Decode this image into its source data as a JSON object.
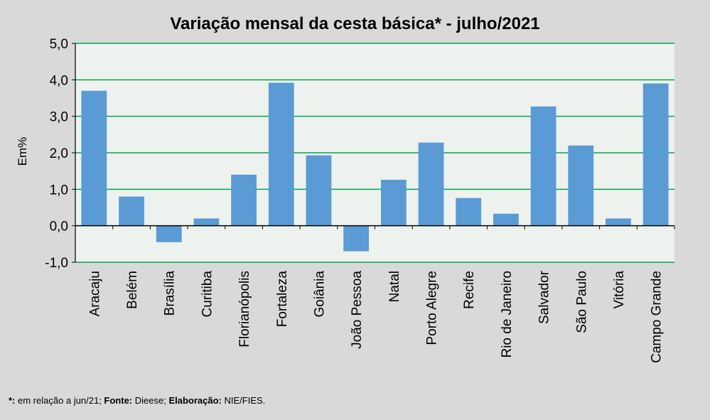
{
  "chart_data": {
    "type": "bar",
    "title": "Variação  mensal da cesta básica* - julho/2021",
    "xlabel": "",
    "ylabel": "Em%",
    "ylim": [
      -1.0,
      5.0
    ],
    "yticks": [
      -1.0,
      0.0,
      1.0,
      2.0,
      3.0,
      4.0,
      5.0
    ],
    "ytick_labels": [
      "-1,0",
      "0,0",
      "1,0",
      "2,0",
      "3,0",
      "4,0",
      "5,0"
    ],
    "grid": true,
    "categories": [
      "Aracaju",
      "Belém",
      "Brasília",
      "Curitiba",
      "Florianópolis",
      "Fortaleza",
      "Goiânia",
      "João Pessoa",
      "Natal",
      "Porto Alegre",
      "Recife",
      "Rio de Janeiro",
      "Salvador",
      "São Paulo",
      "Vitória",
      "Campo Grande"
    ],
    "values": [
      3.7,
      0.8,
      -0.45,
      0.2,
      1.4,
      3.92,
      1.93,
      -0.7,
      1.26,
      2.28,
      0.76,
      0.33,
      3.27,
      2.2,
      0.2,
      3.9
    ]
  },
  "colors": {
    "bar": "#5b9bd5",
    "grid": "#00a650",
    "plot_bg": "#eef2ee",
    "page_bg": "#d9d9d9"
  },
  "footnote": {
    "star_label": "*:",
    "star_text": " em relação a jun/21; ",
    "source_label": "Fonte:",
    "source_text": " Dieese; ",
    "credit_label": "Elaboração:",
    "credit_text": " NIE/FIES."
  }
}
